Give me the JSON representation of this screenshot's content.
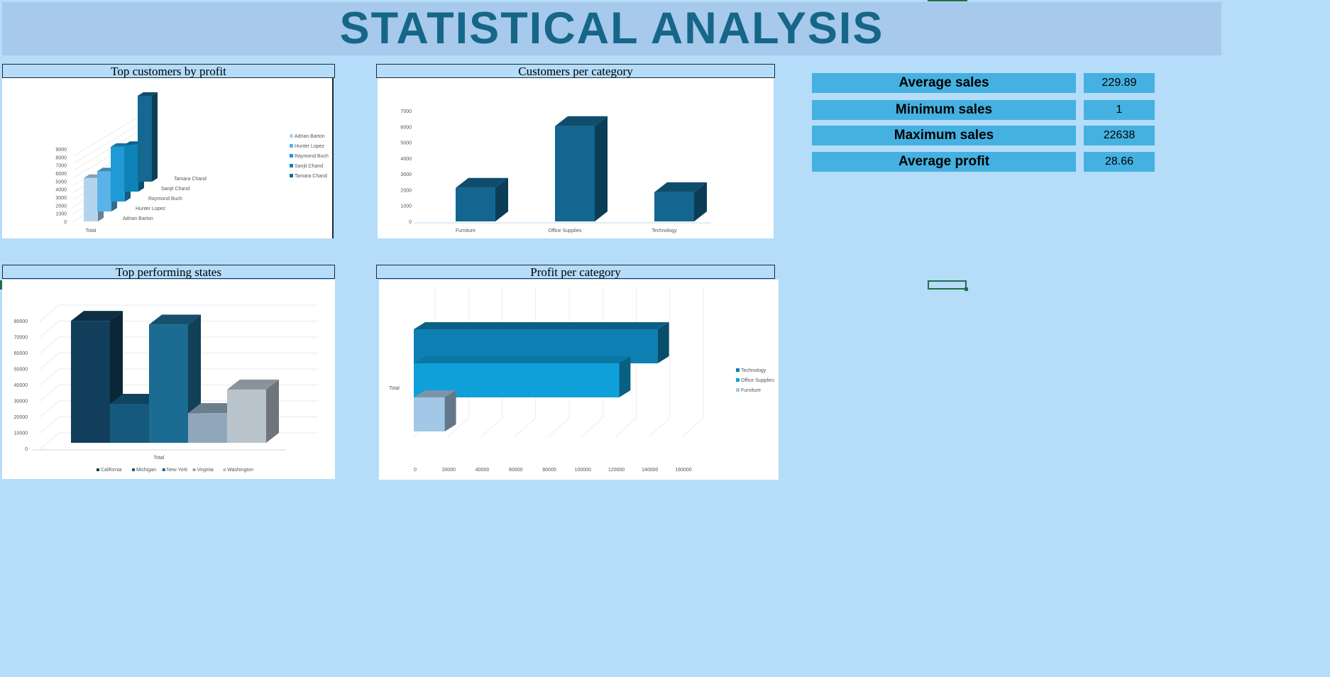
{
  "header": {
    "title": "STATISTICAL ANALYSIS"
  },
  "stats": [
    {
      "label": "Average sales",
      "value": "229.89"
    },
    {
      "label": "Minimum sales",
      "value": "1"
    },
    {
      "label": "Maximum sales",
      "value": "22638"
    },
    {
      "label": "Average profit",
      "value": "28.66"
    }
  ],
  "chart_titles": {
    "top_customers": "Top customers by profit",
    "customers_per_category": "Customers per category",
    "top_states": "Top performing states",
    "profit_per_category": "Profit per category"
  },
  "chart_data": [
    {
      "type": "bar",
      "title": "Top customers by profit",
      "categories": [
        "Total"
      ],
      "series": [
        {
          "name": "Adrian Barton",
          "values": [
            5400
          ]
        },
        {
          "name": "Hunter Lopez",
          "values": [
            5000
          ]
        },
        {
          "name": "Raymond Buch",
          "values": [
            6800
          ]
        },
        {
          "name": "Sanjit Chand",
          "values": [
            5800
          ]
        },
        {
          "name": "Tamara Chand",
          "values": [
            8900
          ]
        }
      ],
      "y_ticks": [
        "0",
        "1000",
        "2000",
        "3000",
        "4000",
        "5000",
        "6000",
        "7000",
        "8000",
        "9000"
      ],
      "ylim": [
        0,
        9000
      ],
      "legend": "right",
      "colors": [
        "#b4d4ee",
        "#5ab2e8",
        "#1f9ad6",
        "#0d83b8",
        "#15688f"
      ]
    },
    {
      "type": "bar",
      "title": "Customers per category",
      "categories": [
        "Furniture",
        "Office Supplies",
        "Technology"
      ],
      "values": [
        2121,
        6026,
        1847
      ],
      "y_ticks": [
        "0",
        "1000",
        "2000",
        "3000",
        "4000",
        "5000",
        "6000",
        "7000"
      ],
      "ylim": [
        0,
        7000
      ]
    },
    {
      "type": "bar",
      "title": "Top performing states",
      "categories": [
        "Total"
      ],
      "series": [
        {
          "name": "California",
          "values": [
            76381
          ]
        },
        {
          "name": "Michigan",
          "values": [
            24463
          ]
        },
        {
          "name": "New York",
          "values": [
            74039
          ]
        },
        {
          "name": "Virginia",
          "values": [
            18598
          ]
        },
        {
          "name": "Washington",
          "values": [
            33403
          ]
        }
      ],
      "y_ticks": [
        "0",
        "10000",
        "20000",
        "30000",
        "40000",
        "50000",
        "60000",
        "70000",
        "80000"
      ],
      "ylim": [
        0,
        80000
      ],
      "legend": "bottom",
      "colors": [
        "#113f5b",
        "#155a7d",
        "#1c6b92",
        "#90a6bb",
        "#b9c3cc"
      ]
    },
    {
      "type": "bar",
      "title": "Profit per category",
      "categories": [
        "Total"
      ],
      "series": [
        {
          "name": "Technology",
          "values": [
            145455
          ]
        },
        {
          "name": "Office Supplies",
          "values": [
            122491
          ]
        },
        {
          "name": "Furniture",
          "values": [
            18451
          ]
        }
      ],
      "x_ticks": [
        "0",
        "20000",
        "40000",
        "60000",
        "80000",
        "100000",
        "120000",
        "140000",
        "160000"
      ],
      "xlim": [
        0,
        160000
      ],
      "legend": "right",
      "colors": [
        "#0e80b3",
        "#0fa0da",
        "#a3c7e6"
      ]
    }
  ]
}
